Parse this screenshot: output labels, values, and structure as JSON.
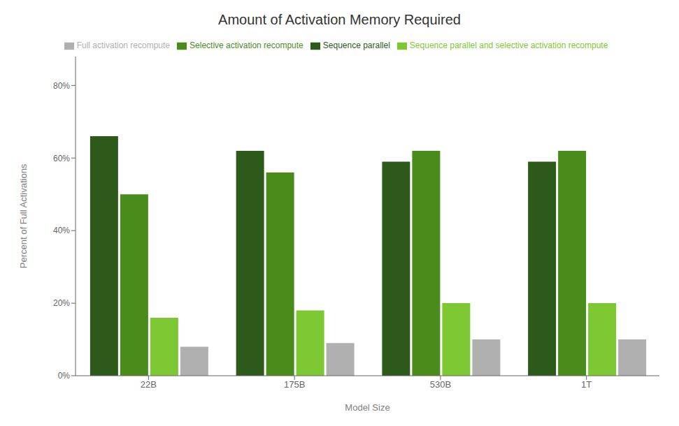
{
  "chart_data": {
    "type": "bar",
    "title": "Amount of Activation Memory Required",
    "x_label": "Model Size",
    "y_label": "Percent of Full Activations",
    "categories": [
      "22B",
      "175B",
      "530B",
      "1T"
    ],
    "series": [
      {
        "name": "Sequence parallel",
        "color": "#2d5a1b",
        "values": [
          66,
          62,
          59,
          59
        ]
      },
      {
        "name": "Selective activation recompute",
        "color": "#4a8c1c",
        "values": [
          50,
          56,
          62,
          62
        ]
      },
      {
        "name": "Sequence parallel and selective activation recompute",
        "color": "#7dc832",
        "values": [
          16,
          18,
          20,
          20
        ]
      },
      {
        "name": "Full activation recompute",
        "color": "#b0b0b0",
        "values": [
          8,
          9,
          10,
          10
        ]
      }
    ],
    "ylim": [
      0,
      88
    ],
    "yticks": [
      {
        "value": 0,
        "label": "0%"
      },
      {
        "value": 20,
        "label": "20%"
      },
      {
        "value": 40,
        "label": "40%"
      },
      {
        "value": 60,
        "label": "60%"
      },
      {
        "value": 80,
        "label": "80%"
      }
    ],
    "grid": false,
    "legend": "top"
  }
}
